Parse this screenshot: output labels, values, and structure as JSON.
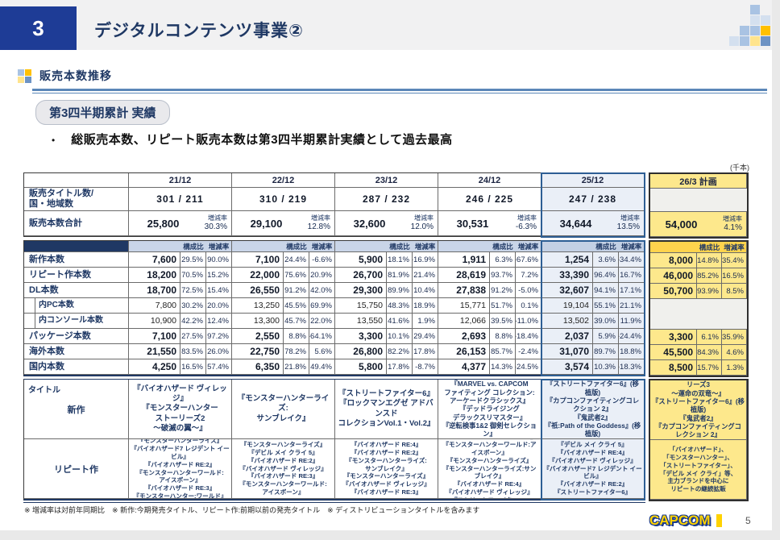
{
  "slide": {
    "number": "3",
    "title": "デジタルコンテンツ事業②",
    "section": "販売本数推移",
    "badge": "第3四半期累計 実績",
    "bullet_dot": "•",
    "bullet": "総販売本数、リピート販売本数は第3四半期累計実績として過去最高",
    "unit": "(千本)",
    "footnote": "※ 増減率は対前年同期比　※ 新作:今期発売タイトル、リピート作:前期以前の発売タイトル　※ ディストリビューションタイトルを含みます",
    "logo": "CAPCOM",
    "page_number": "5"
  },
  "colors": {
    "navy": "#1e3c96",
    "text_navy": "#1f3864",
    "gold": "#ffc000",
    "light_yellow": "#ffe48d",
    "steel_blue": "#6d93c4",
    "mid_blue": "#a9c3e3",
    "pale_blue": "#d4e0ef",
    "band_blue": "#c9d5e8",
    "highlight_border": "#2d5e94",
    "highlight_fill": "#eaeff7",
    "plan_fill": "#fde88c",
    "plan_band": "#ffd34d"
  },
  "decor": {
    "corner_pattern": [
      [
        0,
        2,
        "mid_blue"
      ],
      [
        1,
        2,
        "pale_blue"
      ],
      [
        1,
        3,
        "pale_blue"
      ],
      [
        2,
        1,
        "mid_blue"
      ],
      [
        2,
        2,
        "mid_blue"
      ],
      [
        2,
        3,
        "gold"
      ],
      [
        3,
        0,
        "pale_blue"
      ],
      [
        3,
        1,
        "mid_blue"
      ],
      [
        3,
        2,
        "light_yellow"
      ],
      [
        3,
        3,
        "steel_blue"
      ]
    ],
    "section_icon_pattern": [
      [
        0,
        0,
        "mid_blue"
      ],
      [
        0,
        1,
        "gold"
      ],
      [
        1,
        0,
        "light_yellow"
      ],
      [
        1,
        1,
        "steel_blue"
      ]
    ]
  },
  "table": {
    "periods": [
      "21/12",
      "22/12",
      "23/12",
      "24/12",
      "25/12",
      "26/3 計画"
    ],
    "labels": {
      "titles_count": "販売タイトル数/\n国・地域数",
      "total": "販売本数合計",
      "comp": "構成比",
      "rate": "増減率",
      "titles_header": "タイトル",
      "new": "新作",
      "repeat": "リピート作"
    },
    "titles_counts": [
      "301 / 211",
      "310 / 219",
      "287 / 232",
      "246 / 225",
      "247 / 238",
      ""
    ],
    "totals": [
      {
        "value": "25,800",
        "rate": "30.3%"
      },
      {
        "value": "29,100",
        "rate": "12.8%"
      },
      {
        "value": "32,600",
        "rate": "12.0%"
      },
      {
        "value": "30,531",
        "rate": "-6.3%"
      },
      {
        "value": "34,644",
        "rate": "13.5%"
      },
      {
        "value": "54,000",
        "rate": "4.1%"
      }
    ],
    "rows": [
      {
        "label": "新作本数",
        "sub": false,
        "cells": [
          [
            "7,600",
            "29.5%",
            "90.0%"
          ],
          [
            "7,100",
            "24.4%",
            "-6.6%"
          ],
          [
            "5,900",
            "18.1%",
            "-16.9%"
          ],
          [
            "1,911",
            "6.3%",
            "-67.6%"
          ],
          [
            "1,254",
            "3.6%",
            "-34.4%"
          ],
          [
            "8,000",
            "14.8%",
            "-35.4%"
          ]
        ]
      },
      {
        "label": "リピート作本数",
        "sub": false,
        "cells": [
          [
            "18,200",
            "70.5%",
            "15.2%"
          ],
          [
            "22,000",
            "75.6%",
            "20.9%"
          ],
          [
            "26,700",
            "81.9%",
            "21.4%"
          ],
          [
            "28,619",
            "93.7%",
            "7.2%"
          ],
          [
            "33,390",
            "96.4%",
            "16.7%"
          ],
          [
            "46,000",
            "85.2%",
            "16.5%"
          ]
        ]
      },
      {
        "label": "DL本数",
        "sub": false,
        "cells": [
          [
            "18,700",
            "72.5%",
            "15.4%"
          ],
          [
            "26,550",
            "91.2%",
            "42.0%"
          ],
          [
            "29,300",
            "89.9%",
            "10.4%"
          ],
          [
            "27,838",
            "91.2%",
            "-5.0%"
          ],
          [
            "32,607",
            "94.1%",
            "17.1%"
          ],
          [
            "50,700",
            "93.9%",
            "8.5%"
          ]
        ]
      },
      {
        "label": "内PC本数",
        "sub": true,
        "cells": [
          [
            "7,800",
            "30.2%",
            "20.0%"
          ],
          [
            "13,250",
            "45.5%",
            "69.9%"
          ],
          [
            "15,750",
            "48.3%",
            "18.9%"
          ],
          [
            "15,771",
            "51.7%",
            "0.1%"
          ],
          [
            "19,104",
            "55.1%",
            "21.1%"
          ],
          [
            "",
            "",
            ""
          ]
        ]
      },
      {
        "label": "内コンソール本数",
        "sub": true,
        "cells": [
          [
            "10,900",
            "42.2%",
            "12.4%"
          ],
          [
            "13,300",
            "45.7%",
            "22.0%"
          ],
          [
            "13,550",
            "41.6%",
            "1.9%"
          ],
          [
            "12,066",
            "39.5%",
            "-11.0%"
          ],
          [
            "13,502",
            "39.0%",
            "11.9%"
          ],
          [
            "",
            "",
            ""
          ]
        ]
      },
      {
        "label": "パッケージ本数",
        "sub": false,
        "cells": [
          [
            "7,100",
            "27.5%",
            "97.2%"
          ],
          [
            "2,550",
            "8.8%",
            "-64.1%"
          ],
          [
            "3,300",
            "10.1%",
            "29.4%"
          ],
          [
            "2,693",
            "8.8%",
            "-18.4%"
          ],
          [
            "2,037",
            "5.9%",
            "-24.4%"
          ],
          [
            "3,300",
            "6.1%",
            "-35.9%"
          ]
        ]
      },
      {
        "label": "海外本数",
        "sub": false,
        "cells": [
          [
            "21,550",
            "83.5%",
            "26.0%"
          ],
          [
            "22,750",
            "78.2%",
            "5.6%"
          ],
          [
            "26,800",
            "82.2%",
            "17.8%"
          ],
          [
            "26,153",
            "85.7%",
            "-2.4%"
          ],
          [
            "31,070",
            "89.7%",
            "18.8%"
          ],
          [
            "45,500",
            "84.3%",
            "4.6%"
          ]
        ]
      },
      {
        "label": "国内本数",
        "sub": false,
        "cells": [
          [
            "4,250",
            "16.5%",
            "57.4%"
          ],
          [
            "6,350",
            "21.8%",
            "49.4%"
          ],
          [
            "5,800",
            "17.8%",
            "-8.7%"
          ],
          [
            "4,377",
            "14.3%",
            "-24.5%"
          ],
          [
            "3,574",
            "10.3%",
            "-18.3%"
          ],
          [
            "8,500",
            "15.7%",
            "1.3%"
          ]
        ]
      }
    ],
    "titles_new": [
      "『バイオハザード ヴィレッジ』\n『モンスターハンター\nストーリーズ2\n～破滅の翼～』",
      "『モンスターハンターライズ:\nサンブレイク』",
      "『ストリートファイター6』\n『ロックマンエグゼ アドバンスド\nコレクションVol.1・Vol.2』",
      "『MARVEL vs. CAPCOM\nファイティング コレクション:\nアーケードクラシックス』\n『デッドライジング\nデラックスリマスター』\n『逆転検事1&2 御剣セレクション』",
      "『ストリートファイター6』(移植版)\n『カプコンファイティングコレクション 2』\n『鬼武者2』\n『祇:Path of the Goddess』(移植版)",
      "『バイオハザード レクイエム』\n『モンスターハンターストーリーズ3\n～運命の双竜～』\n『ストリートファイター6』(移植版)\n『鬼武者2』\n『カプコンファイティングコレクション 2』\n『流星のロックマン\nパーフェクトコレクション』\n等"
    ],
    "titles_repeat": [
      "『モンスターハンターライズ』\n『バイオハザード7 レジデント イービル』\n『バイオハザード RE:2』\n『モンスターハンターワールド:\nアイスボーン』\n『バイオハザード RE:3』\n『モンスターハンター:ワールド』",
      "『モンスターハンターライズ』\n『デビル メイ クライ 5』\n『バイオハザード RE:2』\n『バイオハザード ヴィレッジ』\n『バイオハザード RE:3』\n『モンスターハンターワールド:\nアイスボーン』",
      "『バイオハザード RE:4』\n『バイオハザード RE:2』\n『モンスターハンターライズ:\nサンブレイク』\n『モンスターハンターライズ』\n『バイオハザード ヴィレッジ』\n『バイオハザード RE:3』",
      "『モンスターハンター:ワールド』\n『モンスターハンターワールド:アイスボーン』\n『モンスターハンターライズ』\n『モンスターハンターライズ:サンブレイク』\n『バイオハザード RE:4』\n『バイオハザード ヴィレッジ』\n『ストリートファイター6』",
      "『デビル メイ クライ 5』\n『バイオハザード RE:4』\n『バイオハザード ヴィレッジ』\n『バイオハザード7 レジデント イービル』\n『バイオハザード RE:2』\n『ストリートファイター6』",
      "「バイオハザード」、\n「モンスターハンター」、\n「ストリートファイター」、\n「デビル メイ クライ」等、\n主力ブランドを中心に\nリピートの継続拡販"
    ]
  }
}
